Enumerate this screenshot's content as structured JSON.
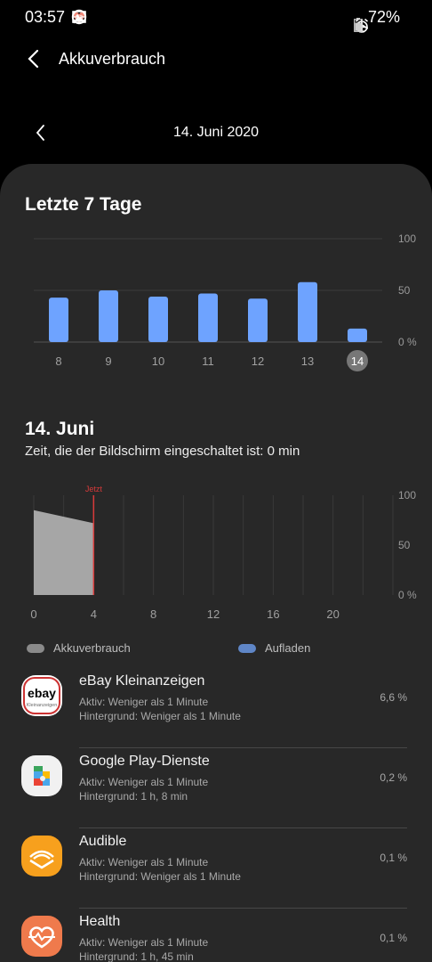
{
  "status": {
    "time": "03:57",
    "battery": "72%"
  },
  "header": {
    "title": "Akkuverbrauch"
  },
  "date_nav": {
    "date": "14. Juni 2020"
  },
  "week": {
    "title": "Letzte 7 Tage",
    "chart_data": {
      "type": "bar",
      "categories": [
        "8",
        "9",
        "10",
        "11",
        "12",
        "13",
        "14"
      ],
      "values": [
        43,
        50,
        44,
        47,
        42,
        58,
        13
      ],
      "selected": "14",
      "ylim": [
        0,
        100
      ],
      "y_ticks": [
        "100",
        "50",
        "0 %"
      ],
      "bar_color": "#6ea3ff"
    }
  },
  "day": {
    "title": "14. Juni",
    "screen_on": "Zeit, die der Bildschirm eingeschaltet ist: 0 min",
    "chart_data": {
      "type": "area",
      "x": [
        0,
        4
      ],
      "y": [
        85,
        72
      ],
      "xlim": [
        0,
        24
      ],
      "ylim": [
        0,
        100
      ],
      "x_ticks": [
        "0",
        "4",
        "8",
        "12",
        "16",
        "20"
      ],
      "y_ticks": [
        "100",
        "50",
        "0 %"
      ],
      "now_label": "Jetzt",
      "now_x": 4,
      "fill_color": "#a6a6a6",
      "now_color": "#d83a3a"
    }
  },
  "legend": {
    "usage": "Akkuverbrauch",
    "charging": "Aufladen"
  },
  "apps": [
    {
      "name": "eBay Kleinanzeigen",
      "active": "Aktiv: Weniger als 1 Minute",
      "background": "Hintergrund: Weniger als 1 Minute",
      "percent": "6,6 %",
      "icon": "ebay-kleinanzeigen-icon",
      "icon_text": "ebay",
      "icon_subtext": "Kleinanzeigen"
    },
    {
      "name": "Google Play-Dienste",
      "active": "Aktiv: Weniger als 1 Minute",
      "background": "Hintergrund: 1 h, 8 min",
      "percent": "0,2 %",
      "icon": "google-play-services-icon"
    },
    {
      "name": "Audible",
      "active": "Aktiv: Weniger als 1 Minute",
      "background": "Hintergrund: Weniger als 1 Minute",
      "percent": "0,1 %",
      "icon": "audible-icon"
    },
    {
      "name": "Health",
      "active": "Aktiv: Weniger als 1 Minute",
      "background": "Hintergrund: 1 h, 45 min",
      "percent": "0,1 %",
      "icon": "health-icon"
    }
  ]
}
